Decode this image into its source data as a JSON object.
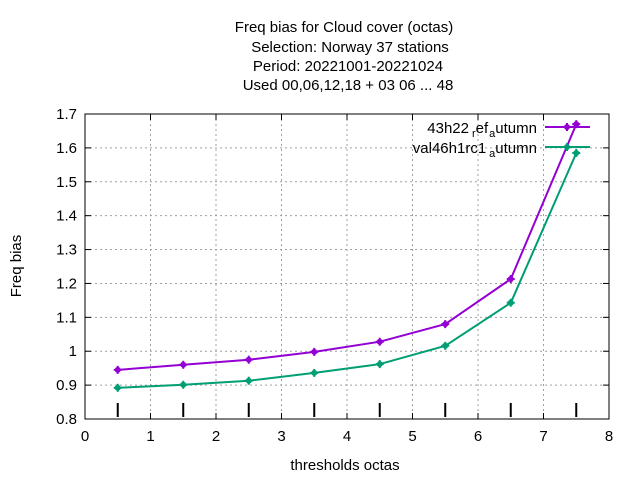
{
  "chart_data": {
    "type": "line",
    "title_lines": [
      "Freq bias  for Cloud cover (octas)",
      "Selection: Norway     37 stations",
      "Period: 20221001-20221024",
      "Used  00,06,12,18  + 03 06 ... 48"
    ],
    "xlabel": "thresholds octas",
    "ylabel": "Freq bias",
    "xlim": [
      0,
      8
    ],
    "ylim": [
      0.8,
      1.7
    ],
    "x_ticks": [
      "0",
      "1",
      "2",
      "3",
      "4",
      "5",
      "6",
      "7",
      "8"
    ],
    "y_ticks": [
      "0.8",
      "0.9",
      "1",
      "1.1",
      "1.2",
      "1.3",
      "1.4",
      "1.5",
      "1.6",
      "1.7"
    ],
    "grid": true,
    "legend_position": "top-right",
    "x": [
      0.5,
      1.5,
      2.5,
      3.5,
      4.5,
      5.5,
      6.5,
      7.5
    ],
    "bottom_marks_x": [
      0.5,
      1.5,
      2.5,
      3.5,
      4.5,
      5.5,
      6.5,
      7.5
    ],
    "series": [
      {
        "name": "43h22",
        "name_sub1": "r",
        "name_mid": "ef",
        "name_sub2": "a",
        "name_end": "utumn",
        "color": "#9400d3",
        "values": [
          0.945,
          0.96,
          0.975,
          0.998,
          1.028,
          1.08,
          1.213,
          1.67
        ]
      },
      {
        "name": "val46h1rc1",
        "name_sub1": "a",
        "name_end": "utumn",
        "color": "#009e73",
        "values": [
          0.892,
          0.901,
          0.913,
          0.936,
          0.962,
          1.016,
          1.143,
          1.585
        ]
      }
    ]
  }
}
